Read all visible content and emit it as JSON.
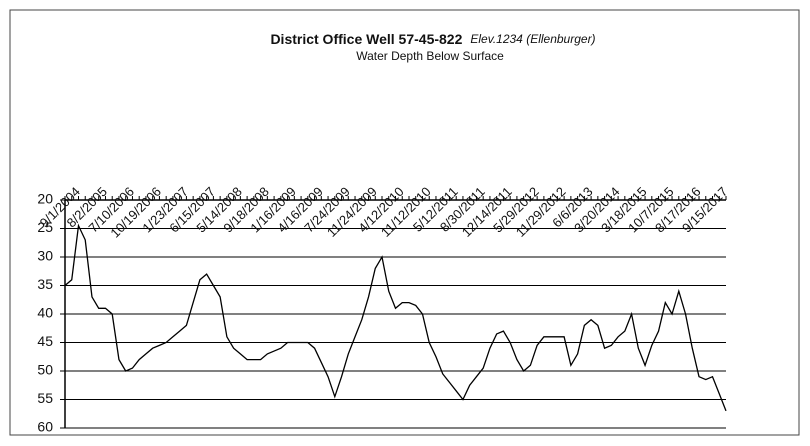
{
  "chart_data": {
    "type": "line",
    "title": "District Office Well 57-45-822",
    "annotation": "Elev.1234 (Ellenburger)",
    "subtitle": "Water Depth Below Surface",
    "categories": [
      null,
      null,
      "9/1/2004",
      null,
      null,
      null,
      "8/2/2005",
      null,
      null,
      null,
      "7/10/2006",
      null,
      null,
      null,
      "10/19/2006",
      null,
      null,
      null,
      "1/23/2007",
      null,
      null,
      null,
      "6/15/2007",
      null,
      null,
      null,
      "5/14/2008",
      null,
      null,
      null,
      "9/18/2008",
      null,
      null,
      null,
      "1/16/2009",
      null,
      null,
      null,
      "4/16/2009",
      null,
      null,
      null,
      "7/24/2009",
      null,
      null,
      null,
      "11/24/2009",
      null,
      null,
      null,
      "4/12/2010",
      null,
      null,
      null,
      "11/12/2010",
      null,
      null,
      null,
      "5/12/2011",
      null,
      null,
      null,
      "8/30/2011",
      null,
      null,
      null,
      "12/14/2011",
      null,
      null,
      null,
      "5/29/2012",
      null,
      null,
      null,
      "11/29/2012",
      null,
      null,
      null,
      "6/6/2013",
      null,
      null,
      null,
      "3/20/2014",
      null,
      null,
      null,
      "3/18/2015",
      null,
      null,
      null,
      "10/7/2015",
      null,
      null,
      null,
      "8/17/2016",
      null,
      null,
      null,
      "9/15/2017"
    ],
    "series": [
      {
        "color": "#000000",
        "values": [
          35,
          34,
          24.5,
          27,
          37,
          39,
          39,
          40,
          48,
          50,
          49.5,
          48,
          47,
          46,
          45.5,
          45,
          44,
          43,
          42,
          38,
          34,
          33,
          35,
          37,
          44,
          46,
          47,
          48,
          48,
          48,
          47,
          46.5,
          46,
          45,
          45,
          45,
          45,
          46,
          48.5,
          51,
          54.5,
          51,
          47,
          44,
          41,
          37,
          32,
          30,
          36,
          39,
          38,
          38,
          38.5,
          40,
          45,
          47.5,
          50.5,
          52,
          53.5,
          55,
          52.5,
          51,
          49.5,
          46,
          43.5,
          43,
          45,
          48,
          50,
          49,
          45.5,
          44,
          44,
          44,
          44,
          49,
          47,
          42,
          41,
          42,
          46,
          45.5,
          44,
          43,
          40,
          46,
          49,
          45.5,
          43,
          38,
          40,
          36,
          40,
          46,
          51,
          51.5,
          51,
          54,
          57
        ]
      }
    ],
    "ylim": [
      20,
      60
    ],
    "yticks": [
      20,
      25,
      30,
      35,
      40,
      45,
      50,
      55,
      60
    ],
    "y_inverted": true,
    "grid": true
  }
}
